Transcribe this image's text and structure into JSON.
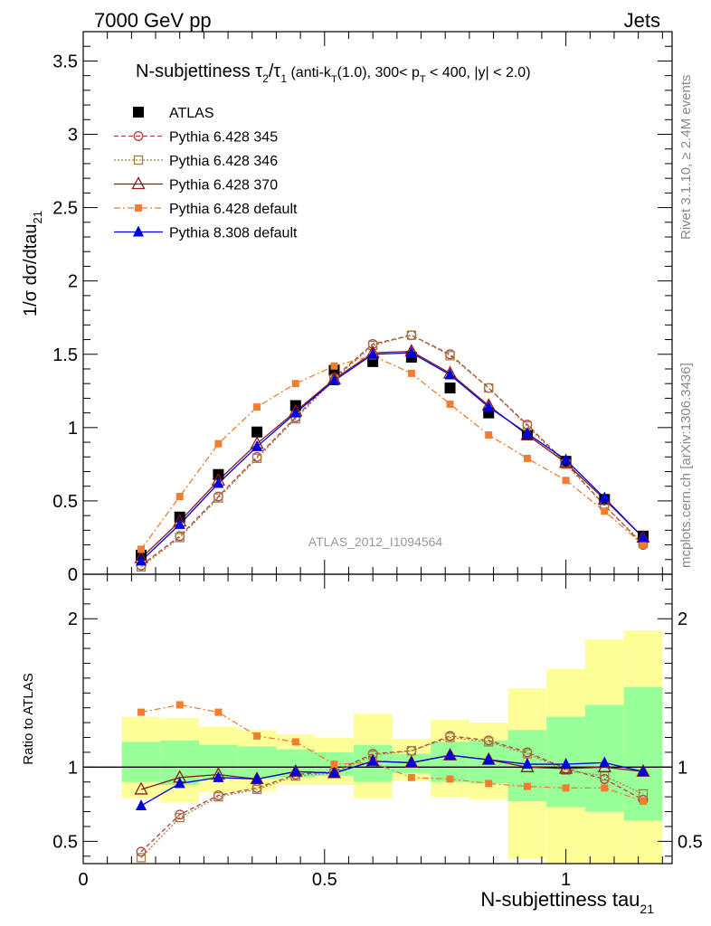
{
  "header": {
    "left": "7000 GeV pp",
    "right": "Jets"
  },
  "side_labels": {
    "rivet": "Rivet 3.1.10, ≥ 2.4M events",
    "mcplots": "mcplots.cern.ch [arXiv:1306.3436]"
  },
  "chart_data": [
    {
      "type": "scatter",
      "title": "N-subjettiness τ₂/τ₁ (anti-k_T(1.0), 300< p_T < 400, |y| < 2.0)",
      "title_main": "N-subjettiness ",
      "title_tau2": "τ",
      "title_sub2": "2",
      "title_slash": "/τ",
      "title_sub1": "1",
      "title_paren1": " (anti-k",
      "title_subT": "T",
      "title_paren2": "(1.0), 300< p",
      "title_subT2": "T",
      "title_paren3": " < 400, |y| < 2.0)",
      "ylabel": "1/σ dσ/dtau",
      "ylabel_sub": "21",
      "watermark": "ATLAS_2012_I1094564",
      "xlim": [
        0,
        1.22
      ],
      "ylim": [
        0,
        3.7
      ],
      "yticks": [
        {
          "v": 0,
          "label": "0"
        },
        {
          "v": 0.5,
          "label": "0.5"
        },
        {
          "v": 1,
          "label": "1"
        },
        {
          "v": 1.5,
          "label": "1.5"
        },
        {
          "v": 2,
          "label": "2"
        },
        {
          "v": 2.5,
          "label": "2.5"
        },
        {
          "v": 3,
          "label": "3"
        },
        {
          "v": 3.5,
          "label": "3.5"
        }
      ],
      "x": [
        0.12,
        0.2,
        0.28,
        0.36,
        0.44,
        0.52,
        0.6,
        0.68,
        0.76,
        0.84,
        0.92,
        1.0,
        1.08,
        1.16
      ],
      "series": [
        {
          "name": "ATLAS",
          "color": "#000000",
          "marker": "square-filled",
          "line": "none",
          "values": [
            0.13,
            0.39,
            0.68,
            0.97,
            1.15,
            1.39,
            1.45,
            1.48,
            1.27,
            1.1,
            0.95,
            0.77,
            0.51,
            0.26
          ]
        },
        {
          "name": "Pythia 6.428 345",
          "color": "#b04040",
          "marker": "circle-open",
          "line": "dashed",
          "values": [
            0.06,
            0.26,
            0.53,
            0.8,
            1.07,
            1.34,
            1.57,
            1.63,
            1.5,
            1.27,
            1.02,
            0.76,
            0.47,
            0.2
          ]
        },
        {
          "name": "Pythia 6.428 346",
          "color": "#a08040",
          "marker": "square-open",
          "line": "dotted",
          "values": [
            0.05,
            0.25,
            0.52,
            0.79,
            1.06,
            1.33,
            1.56,
            1.63,
            1.49,
            1.27,
            1.01,
            0.75,
            0.47,
            0.21
          ]
        },
        {
          "name": "Pythia 6.428 370",
          "color": "#8b1a1a",
          "marker": "triangle-open",
          "line": "solid",
          "values": [
            0.11,
            0.36,
            0.64,
            0.89,
            1.11,
            1.33,
            1.51,
            1.52,
            1.37,
            1.15,
            0.95,
            0.76,
            0.51,
            0.25
          ]
        },
        {
          "name": "Pythia 6.428 default",
          "color": "#f07d30",
          "marker": "square-filled-small",
          "line": "dashdot",
          "values": [
            0.17,
            0.53,
            0.89,
            1.14,
            1.3,
            1.42,
            1.49,
            1.37,
            1.16,
            0.95,
            0.79,
            0.64,
            0.43,
            0.2
          ]
        },
        {
          "name": "Pythia 8.308 default",
          "color": "#0000dd",
          "marker": "triangle-filled",
          "line": "solid",
          "values": [
            0.09,
            0.34,
            0.62,
            0.87,
            1.1,
            1.32,
            1.5,
            1.51,
            1.36,
            1.14,
            0.96,
            0.78,
            0.52,
            0.25
          ]
        }
      ]
    },
    {
      "type": "scatter",
      "ylabel": "Ratio to ATLAS",
      "xlabel": "N-subjettiness tau",
      "xlabel_sub": "21",
      "xlim": [
        0,
        1.22
      ],
      "ylim": [
        0.35,
        2.3
      ],
      "yticks": [
        {
          "v": 0.5,
          "label": "0.5"
        },
        {
          "v": 1,
          "label": "1"
        },
        {
          "v": 2,
          "label": "2"
        }
      ],
      "xticks": [
        {
          "v": 0,
          "label": "0"
        },
        {
          "v": 0.5,
          "label": "0.5"
        },
        {
          "v": 1,
          "label": "1"
        }
      ],
      "bins": [
        {
          "lo": 0.08,
          "hi": 0.16,
          "yellow": [
            0.79,
            1.34
          ],
          "green": [
            0.9,
            1.17
          ]
        },
        {
          "lo": 0.16,
          "hi": 0.24,
          "yellow": [
            0.76,
            1.33
          ],
          "green": [
            0.88,
            1.18
          ]
        },
        {
          "lo": 0.24,
          "hi": 0.32,
          "yellow": [
            0.83,
            1.27
          ],
          "green": [
            0.92,
            1.15
          ]
        },
        {
          "lo": 0.32,
          "hi": 0.4,
          "yellow": [
            0.84,
            1.25
          ],
          "green": [
            0.92,
            1.14
          ]
        },
        {
          "lo": 0.4,
          "hi": 0.48,
          "yellow": [
            0.88,
            1.22
          ],
          "green": [
            0.93,
            1.12
          ]
        },
        {
          "lo": 0.48,
          "hi": 0.56,
          "yellow": [
            0.88,
            1.2
          ],
          "green": [
            0.94,
            1.1
          ]
        },
        {
          "lo": 0.56,
          "hi": 0.64,
          "yellow": [
            0.79,
            1.36
          ],
          "green": [
            0.9,
            1.15
          ]
        },
        {
          "lo": 0.64,
          "hi": 0.72,
          "yellow": [
            0.91,
            1.19
          ],
          "green": [
            0.96,
            1.09
          ]
        },
        {
          "lo": 0.72,
          "hi": 0.8,
          "yellow": [
            0.8,
            1.32
          ],
          "green": [
            0.9,
            1.17
          ]
        },
        {
          "lo": 0.8,
          "hi": 0.88,
          "yellow": [
            0.78,
            1.3
          ],
          "green": [
            0.89,
            1.18
          ]
        },
        {
          "lo": 0.88,
          "hi": 0.96,
          "yellow": [
            0.38,
            1.53
          ],
          "green": [
            0.77,
            1.25
          ]
        },
        {
          "lo": 0.96,
          "hi": 1.04,
          "yellow": [
            0.35,
            1.66
          ],
          "green": [
            0.73,
            1.34
          ]
        },
        {
          "lo": 1.04,
          "hi": 1.12,
          "yellow": [
            0.35,
            1.86
          ],
          "green": [
            0.7,
            1.42
          ]
        },
        {
          "lo": 1.12,
          "hi": 1.2,
          "yellow": [
            0.35,
            1.92
          ],
          "green": [
            0.64,
            1.54
          ]
        }
      ],
      "x": [
        0.12,
        0.2,
        0.28,
        0.36,
        0.44,
        0.52,
        0.6,
        0.68,
        0.76,
        0.84,
        0.92,
        1.0,
        1.08,
        1.16
      ],
      "series": [
        {
          "name": "Pythia 6.428 345",
          "color": "#b04040",
          "marker": "circle-open",
          "line": "dashed",
          "values": [
            0.43,
            0.68,
            0.81,
            0.86,
            0.95,
            0.97,
            1.09,
            1.11,
            1.21,
            1.18,
            1.1,
            0.99,
            0.92,
            0.78
          ]
        },
        {
          "name": "Pythia 6.428 346",
          "color": "#a08040",
          "marker": "square-open",
          "line": "dotted",
          "values": [
            0.39,
            0.66,
            0.8,
            0.85,
            0.94,
            0.96,
            1.08,
            1.11,
            1.2,
            1.17,
            1.09,
            0.98,
            0.94,
            0.82
          ]
        },
        {
          "name": "Pythia 6.428 370",
          "color": "#8b1a1a",
          "marker": "triangle-open",
          "line": "solid",
          "values": [
            0.85,
            0.93,
            0.95,
            0.92,
            0.97,
            0.96,
            1.04,
            1.03,
            1.08,
            1.05,
            1.0,
            0.99,
            1.0,
            0.97
          ]
        },
        {
          "name": "Pythia 6.428 default",
          "color": "#f07d30",
          "marker": "square-filled-small",
          "line": "dashdot",
          "values": [
            1.37,
            1.42,
            1.37,
            1.21,
            1.17,
            1.02,
            1.03,
            0.93,
            0.92,
            0.89,
            0.87,
            0.86,
            0.86,
            0.77
          ]
        },
        {
          "name": "Pythia 8.308 default",
          "color": "#0000dd",
          "marker": "triangle-filled",
          "line": "solid",
          "values": [
            0.74,
            0.89,
            0.93,
            0.92,
            0.97,
            0.96,
            1.04,
            1.03,
            1.08,
            1.05,
            1.02,
            1.02,
            1.03,
            0.97
          ]
        }
      ]
    }
  ]
}
